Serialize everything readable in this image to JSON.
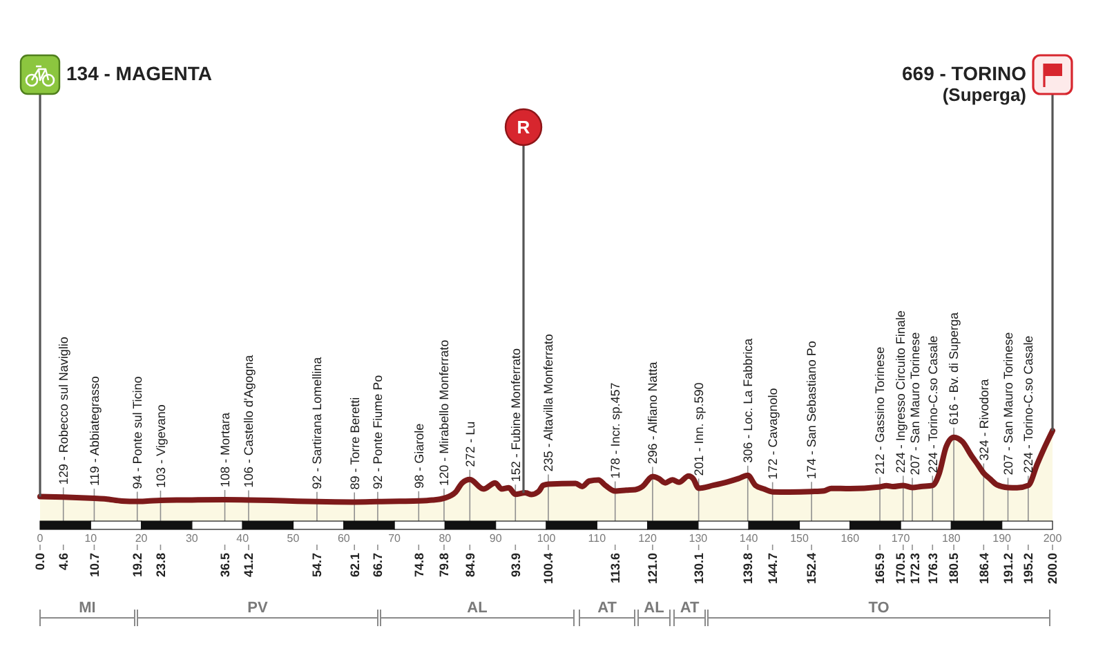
{
  "chart_data": {
    "type": "area",
    "color": "#7d1a1a",
    "x": [
      0,
      4.6,
      10.7,
      13,
      16.2,
      19.2,
      21.2,
      23.8,
      30,
      36.5,
      41.2,
      48,
      54.7,
      62.1,
      66.7,
      71,
      74.8,
      77.5,
      79.8,
      82.1,
      83.4,
      84.9,
      87.6,
      89.9,
      91.2,
      92.6,
      93.9,
      95.8,
      97.1,
      98.5,
      99.4,
      100.4,
      105.8,
      107.1,
      108.5,
      110.3,
      111.7,
      113.6,
      115.8,
      117.6,
      119,
      121,
      122.2,
      123.5,
      124.9,
      126.2,
      128.1,
      129,
      130.1,
      133,
      136,
      138,
      139.8,
      141.3,
      143,
      144.7,
      148,
      152.4,
      154.9,
      156.3,
      160,
      165.9,
      167.2,
      168.5,
      170.5,
      172.3,
      174,
      176.3,
      177.6,
      179,
      180.5,
      182.2,
      184,
      185.3,
      186.4,
      187.6,
      189,
      191.2,
      193,
      195.2,
      197,
      198.5,
      200
    ],
    "values": [
      134,
      129,
      119,
      114,
      97,
      94,
      97,
      103,
      106,
      108,
      106,
      99,
      92,
      89,
      92,
      95,
      98,
      105,
      120,
      170,
      245,
      272,
      195,
      245,
      195,
      205,
      152,
      165,
      150,
      175,
      225,
      235,
      240,
      215,
      260,
      268,
      223,
      178,
      185,
      190,
      215,
      296,
      280,
      245,
      270,
      250,
      300,
      280,
      201,
      225,
      255,
      280,
      306,
      225,
      195,
      172,
      170,
      174,
      180,
      200,
      198,
      212,
      222,
      215,
      224,
      207,
      215,
      224,
      320,
      540,
      616,
      580,
      465,
      390,
      324,
      280,
      230,
      207,
      205,
      224,
      400,
      540,
      669
    ],
    "value_labels": [
      null,
      "129 - Robecco sul Naviglio",
      "119 - Abbiategrasso",
      null,
      null,
      "94 - Ponte sul Ticino",
      null,
      "103 - Vigevano",
      null,
      "108 - Mortara",
      "106 - Castello d'Agogna",
      null,
      "92 - Sartirana Lomellina",
      "89 - Torre Beretti",
      "92 - Ponte Fiume Po",
      null,
      "98 - Giarole",
      null,
      "120 - Mirabello Monferrato",
      null,
      null,
      "272 - Lu",
      null,
      null,
      null,
      null,
      "152 - Fubine Monferrato",
      null,
      null,
      null,
      null,
      "235 - Altavilla Monferrato",
      null,
      null,
      null,
      null,
      null,
      "178 - Incr. sp.457",
      null,
      null,
      null,
      "296 - Alfiano Natta",
      null,
      null,
      null,
      null,
      null,
      null,
      "201 - Inn. sp.590",
      null,
      null,
      null,
      "306 - Loc. La Fabbrica",
      null,
      null,
      "172 - Cavagnolo",
      null,
      "174 - San Sebastiano Po",
      null,
      null,
      null,
      "212 - Gassino Torinese",
      null,
      null,
      "224 - Ingresso Circuito Finale",
      "207 - San Mauro Torinese",
      null,
      "224 - Torino-C.so Casale",
      null,
      null,
      "616 - Bv. di Superga",
      null,
      null,
      null,
      "324 - Rivodora",
      null,
      null,
      "207 - San Mauro Torinese",
      null,
      "224 - Torino-C.so Casale",
      null,
      null,
      null
    ],
    "xlim": [
      0,
      200
    ],
    "xticks": [
      0,
      10,
      20,
      30,
      40,
      50,
      60,
      70,
      80,
      90,
      100,
      110,
      120,
      130,
      140,
      150,
      160,
      170,
      180,
      190,
      200
    ],
    "x2lim": [
      0,
      200
    ],
    "x2ticks": [
      {
        "value": 0,
        "label": "0.0"
      },
      4.6,
      10.7,
      19.2,
      23.8,
      36.5,
      41.2,
      54.7,
      62.1,
      66.7,
      74.8,
      79.8,
      84.9,
      93.9,
      100.4,
      113.6,
      {
        "value": 121,
        "label": "121.0"
      },
      130.1,
      139.8,
      144.7,
      152.4,
      165.9,
      170.5,
      172.3,
      176.3,
      180.5,
      186.4,
      191.2,
      195.2,
      {
        "value": 200,
        "label": "200.0"
      }
    ],
    "tick_labels": "x",
    "ref_lines": [
      {
        "axis": "x",
        "value": 0,
        "label": "134 - MAGENTA"
      },
      {
        "axis": "x",
        "value": 95.5,
        "label": "R"
      },
      {
        "axis": "x",
        "value": 200,
        "label": "669 - TORINO\n(Superga)"
      }
    ],
    "annotations": [
      "MI",
      "PV",
      "AL",
      "AT",
      "AL",
      "AT",
      "TO"
    ]
  }
}
